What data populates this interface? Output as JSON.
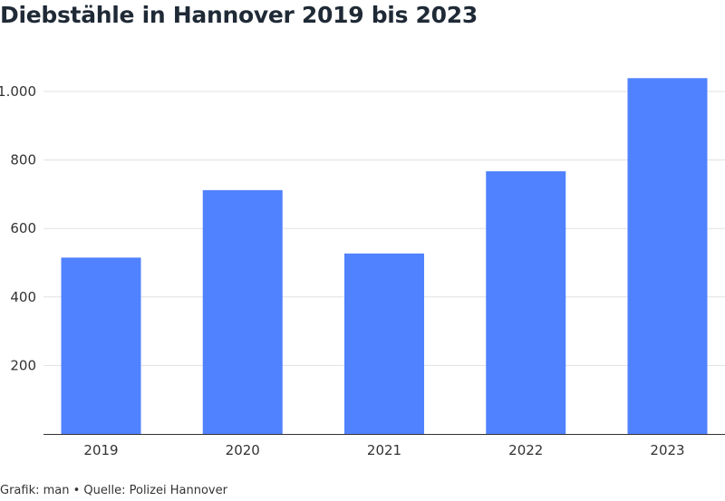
{
  "chart_data": {
    "type": "bar",
    "title": "Diebstähle in Hannover 2019 bis 2023",
    "categories": [
      "2019",
      "2020",
      "2021",
      "2022",
      "2023"
    ],
    "values": [
      515,
      712,
      527,
      767,
      1039
    ],
    "ylim": [
      0,
      1100
    ],
    "yticks": [
      200,
      400,
      600,
      800,
      1000
    ],
    "ytick_labels": [
      "200",
      "400",
      "600",
      "800",
      "1.000"
    ],
    "xlabel": "",
    "ylabel": "",
    "grid": true,
    "bar_color": "#5082ff",
    "grid_color": "#e1e1e1",
    "axis_color": "#333333"
  },
  "footer": {
    "text": "Grafik: man • Quelle: Polizei Hannover"
  }
}
